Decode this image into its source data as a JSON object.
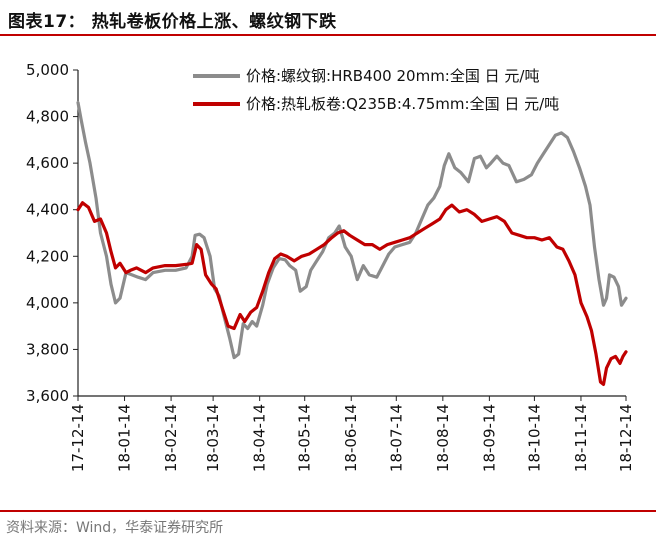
{
  "header": {
    "title": "图表17：  热轧卷板价格上涨、螺纹钢下跌"
  },
  "footer": {
    "source": "资料来源：Wind，华泰证券研究所"
  },
  "chart_data": {
    "type": "line",
    "title": "",
    "xlabel": "",
    "ylabel": "",
    "ylim": [
      3600,
      5000
    ],
    "yticks": [
      3600,
      3800,
      4000,
      4200,
      4400,
      4600,
      4800,
      5000
    ],
    "xticks": [
      "17-12-14",
      "18-01-14",
      "18-02-14",
      "18-03-14",
      "18-04-14",
      "18-05-14",
      "18-06-14",
      "18-07-14",
      "18-08-14",
      "18-09-14",
      "18-10-14",
      "18-11-14",
      "18-12-14"
    ],
    "legend_position": "top-right",
    "grid": false,
    "series": [
      {
        "name": "价格:螺纹钢:HRB400 20mm:全国 日 元/吨",
        "color": "#8c8c8c",
        "points": [
          [
            "2017-12-14",
            4860
          ],
          [
            "2017-12-16",
            4790
          ],
          [
            "2017-12-19",
            4690
          ],
          [
            "2017-12-22",
            4600
          ],
          [
            "2017-12-26",
            4450
          ],
          [
            "2017-12-29",
            4300
          ],
          [
            "2018-01-02",
            4200
          ],
          [
            "2018-01-05",
            4080
          ],
          [
            "2018-01-08",
            4000
          ],
          [
            "2018-01-11",
            4020
          ],
          [
            "2018-01-15",
            4130
          ],
          [
            "2018-01-19",
            4120
          ],
          [
            "2018-01-23",
            4110
          ],
          [
            "2018-01-28",
            4100
          ],
          [
            "2018-02-02",
            4130
          ],
          [
            "2018-02-10",
            4140
          ],
          [
            "2018-02-17",
            4140
          ],
          [
            "2018-02-24",
            4150
          ],
          [
            "2018-02-28",
            4200
          ],
          [
            "2018-03-02",
            4290
          ],
          [
            "2018-03-05",
            4295
          ],
          [
            "2018-03-08",
            4280
          ],
          [
            "2018-03-12",
            4200
          ],
          [
            "2018-03-15",
            4060
          ],
          [
            "2018-03-18",
            4030
          ],
          [
            "2018-03-21",
            3950
          ],
          [
            "2018-03-25",
            3850
          ],
          [
            "2018-03-28",
            3765
          ],
          [
            "2018-03-31",
            3780
          ],
          [
            "2018-04-03",
            3910
          ],
          [
            "2018-04-06",
            3890
          ],
          [
            "2018-04-09",
            3920
          ],
          [
            "2018-04-12",
            3900
          ],
          [
            "2018-04-16",
            3990
          ],
          [
            "2018-04-19",
            4080
          ],
          [
            "2018-04-23",
            4150
          ],
          [
            "2018-04-27",
            4190
          ],
          [
            "2018-05-01",
            4185
          ],
          [
            "2018-05-04",
            4160
          ],
          [
            "2018-05-08",
            4140
          ],
          [
            "2018-05-11",
            4050
          ],
          [
            "2018-05-15",
            4070
          ],
          [
            "2018-05-18",
            4140
          ],
          [
            "2018-05-22",
            4180
          ],
          [
            "2018-05-26",
            4220
          ],
          [
            "2018-05-30",
            4280
          ],
          [
            "2018-06-03",
            4300
          ],
          [
            "2018-06-06",
            4330
          ],
          [
            "2018-06-10",
            4240
          ],
          [
            "2018-06-14",
            4200
          ],
          [
            "2018-06-18",
            4100
          ],
          [
            "2018-06-22",
            4160
          ],
          [
            "2018-06-26",
            4120
          ],
          [
            "2018-07-01",
            4110
          ],
          [
            "2018-07-05",
            4160
          ],
          [
            "2018-07-09",
            4210
          ],
          [
            "2018-07-13",
            4240
          ],
          [
            "2018-07-18",
            4250
          ],
          [
            "2018-07-23",
            4260
          ],
          [
            "2018-07-27",
            4300
          ],
          [
            "2018-07-31",
            4360
          ],
          [
            "2018-08-04",
            4420
          ],
          [
            "2018-08-08",
            4450
          ],
          [
            "2018-08-12",
            4500
          ],
          [
            "2018-08-15",
            4590
          ],
          [
            "2018-08-18",
            4640
          ],
          [
            "2018-08-22",
            4580
          ],
          [
            "2018-08-26",
            4560
          ],
          [
            "2018-08-31",
            4520
          ],
          [
            "2018-09-04",
            4620
          ],
          [
            "2018-09-08",
            4630
          ],
          [
            "2018-09-12",
            4580
          ],
          [
            "2018-09-15",
            4600
          ],
          [
            "2018-09-19",
            4630
          ],
          [
            "2018-09-23",
            4600
          ],
          [
            "2018-09-27",
            4590
          ],
          [
            "2018-10-02",
            4520
          ],
          [
            "2018-10-07",
            4530
          ],
          [
            "2018-10-12",
            4550
          ],
          [
            "2018-10-16",
            4600
          ],
          [
            "2018-10-20",
            4640
          ],
          [
            "2018-10-24",
            4680
          ],
          [
            "2018-10-28",
            4720
          ],
          [
            "2018-11-01",
            4730
          ],
          [
            "2018-11-05",
            4710
          ],
          [
            "2018-11-09",
            4650
          ],
          [
            "2018-11-13",
            4580
          ],
          [
            "2018-11-17",
            4500
          ],
          [
            "2018-11-20",
            4420
          ],
          [
            "2018-11-23",
            4240
          ],
          [
            "2018-11-26",
            4100
          ],
          [
            "2018-11-29",
            3990
          ],
          [
            "2018-12-01",
            4020
          ],
          [
            "2018-12-03",
            4120
          ],
          [
            "2018-12-06",
            4110
          ],
          [
            "2018-12-09",
            4070
          ],
          [
            "2018-12-11",
            3990
          ],
          [
            "2018-12-14",
            4020
          ]
        ]
      },
      {
        "name": "价格:热轧板卷:Q235B:4.75mm:全国 日 元/吨",
        "color": "#c00000",
        "points": [
          [
            "2017-12-14",
            4400
          ],
          [
            "2017-12-17",
            4430
          ],
          [
            "2017-12-21",
            4410
          ],
          [
            "2017-12-25",
            4350
          ],
          [
            "2017-12-29",
            4360
          ],
          [
            "2018-01-02",
            4300
          ],
          [
            "2018-01-05",
            4220
          ],
          [
            "2018-01-08",
            4150
          ],
          [
            "2018-01-11",
            4170
          ],
          [
            "2018-01-15",
            4130
          ],
          [
            "2018-01-18",
            4140
          ],
          [
            "2018-01-22",
            4150
          ],
          [
            "2018-01-28",
            4130
          ],
          [
            "2018-02-02",
            4150
          ],
          [
            "2018-02-10",
            4160
          ],
          [
            "2018-02-17",
            4160
          ],
          [
            "2018-02-24",
            4165
          ],
          [
            "2018-02-28",
            4170
          ],
          [
            "2018-03-03",
            4250
          ],
          [
            "2018-03-06",
            4230
          ],
          [
            "2018-03-09",
            4120
          ],
          [
            "2018-03-13",
            4080
          ],
          [
            "2018-03-16",
            4060
          ],
          [
            "2018-03-20",
            3980
          ],
          [
            "2018-03-24",
            3900
          ],
          [
            "2018-03-28",
            3890
          ],
          [
            "2018-04-01",
            3950
          ],
          [
            "2018-04-04",
            3920
          ],
          [
            "2018-04-08",
            3960
          ],
          [
            "2018-04-12",
            3980
          ],
          [
            "2018-04-16",
            4050
          ],
          [
            "2018-04-20",
            4130
          ],
          [
            "2018-04-24",
            4190
          ],
          [
            "2018-04-28",
            4210
          ],
          [
            "2018-05-02",
            4200
          ],
          [
            "2018-05-07",
            4180
          ],
          [
            "2018-05-12",
            4200
          ],
          [
            "2018-05-17",
            4210
          ],
          [
            "2018-05-22",
            4230
          ],
          [
            "2018-05-27",
            4250
          ],
          [
            "2018-06-01",
            4280
          ],
          [
            "2018-06-05",
            4300
          ],
          [
            "2018-06-09",
            4310
          ],
          [
            "2018-06-13",
            4290
          ],
          [
            "2018-06-18",
            4270
          ],
          [
            "2018-06-23",
            4250
          ],
          [
            "2018-06-28",
            4250
          ],
          [
            "2018-07-03",
            4230
          ],
          [
            "2018-07-08",
            4250
          ],
          [
            "2018-07-13",
            4260
          ],
          [
            "2018-07-18",
            4270
          ],
          [
            "2018-07-23",
            4280
          ],
          [
            "2018-07-28",
            4300
          ],
          [
            "2018-08-02",
            4320
          ],
          [
            "2018-08-07",
            4340
          ],
          [
            "2018-08-12",
            4360
          ],
          [
            "2018-08-16",
            4400
          ],
          [
            "2018-08-20",
            4420
          ],
          [
            "2018-08-25",
            4390
          ],
          [
            "2018-08-30",
            4400
          ],
          [
            "2018-09-04",
            4380
          ],
          [
            "2018-09-09",
            4350
          ],
          [
            "2018-09-14",
            4360
          ],
          [
            "2018-09-19",
            4370
          ],
          [
            "2018-09-24",
            4350
          ],
          [
            "2018-09-29",
            4300
          ],
          [
            "2018-10-04",
            4290
          ],
          [
            "2018-10-09",
            4280
          ],
          [
            "2018-10-14",
            4280
          ],
          [
            "2018-10-19",
            4270
          ],
          [
            "2018-10-24",
            4280
          ],
          [
            "2018-10-29",
            4240
          ],
          [
            "2018-11-02",
            4230
          ],
          [
            "2018-11-06",
            4180
          ],
          [
            "2018-11-10",
            4120
          ],
          [
            "2018-11-14",
            4000
          ],
          [
            "2018-11-18",
            3940
          ],
          [
            "2018-11-21",
            3880
          ],
          [
            "2018-11-24",
            3780
          ],
          [
            "2018-11-27",
            3660
          ],
          [
            "2018-11-29",
            3650
          ],
          [
            "2018-12-01",
            3720
          ],
          [
            "2018-12-04",
            3760
          ],
          [
            "2018-12-07",
            3770
          ],
          [
            "2018-12-10",
            3740
          ],
          [
            "2018-12-12",
            3770
          ],
          [
            "2018-12-14",
            3790
          ]
        ]
      }
    ]
  }
}
